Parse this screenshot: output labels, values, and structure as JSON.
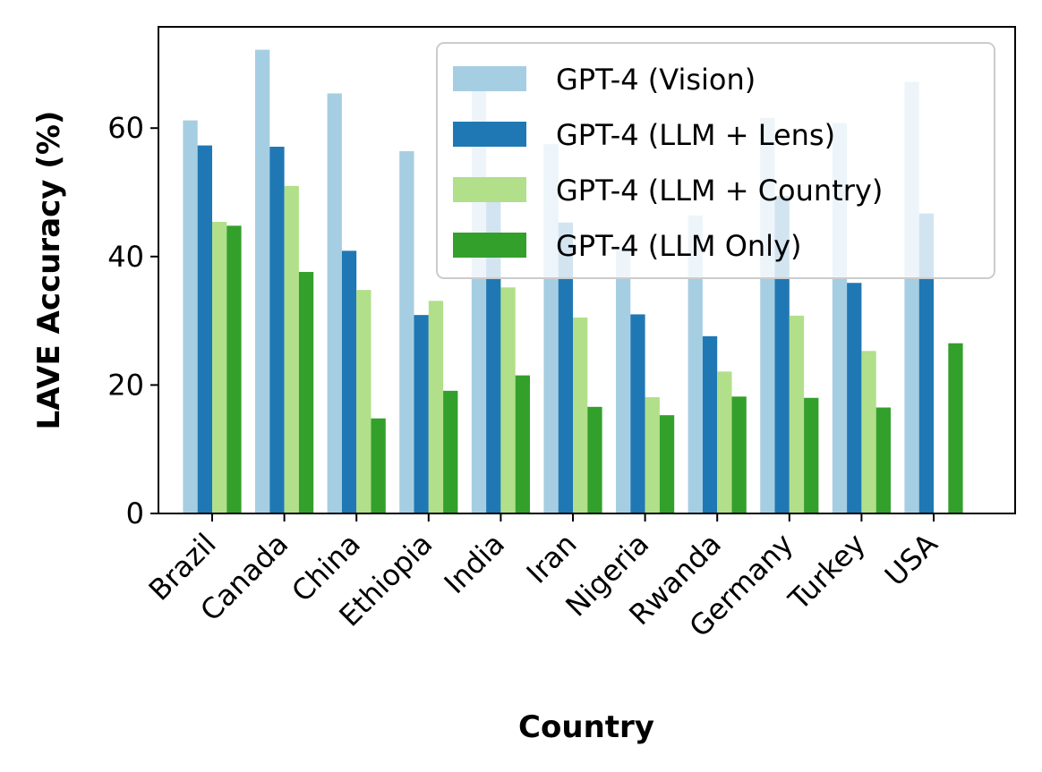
{
  "chart_data": {
    "type": "bar",
    "title": "",
    "xlabel": "Country",
    "ylabel": "LAVE Accuracy (%)",
    "ylim": [
      0,
      76
    ],
    "yticks": [
      0,
      20,
      40,
      60
    ],
    "categories": [
      "Brazil",
      "Canada",
      "China",
      "Ethiopia",
      "India",
      "Iran",
      "Nigeria",
      "Rwanda",
      "Germany",
      "Turkey",
      "USA"
    ],
    "series": [
      {
        "name": "GPT-4 (Vision)",
        "color": "#a6cee3",
        "values": [
          61.2,
          72.2,
          65.4,
          56.4,
          66.0,
          57.5,
          41.2,
          46.4,
          61.6,
          60.8,
          67.2
        ]
      },
      {
        "name": "GPT-4 (LLM + Lens)",
        "color": "#1f78b4",
        "values": [
          57.3,
          57.1,
          40.9,
          30.9,
          50.0,
          45.3,
          31.0,
          27.6,
          49.4,
          35.9,
          46.7
        ]
      },
      {
        "name": "GPT-4 (LLM + Country)",
        "color": "#b2df8a",
        "values": [
          45.4,
          51.0,
          34.8,
          33.1,
          35.2,
          30.5,
          18.1,
          22.1,
          30.8,
          25.3,
          0
        ]
      },
      {
        "name": "GPT-4 (LLM Only)",
        "color": "#33a02c",
        "values": [
          44.8,
          37.6,
          14.8,
          19.1,
          21.5,
          16.6,
          15.3,
          18.2,
          18.0,
          16.5,
          26.5
        ]
      }
    ],
    "grid": false,
    "legend_position": "top-right"
  }
}
